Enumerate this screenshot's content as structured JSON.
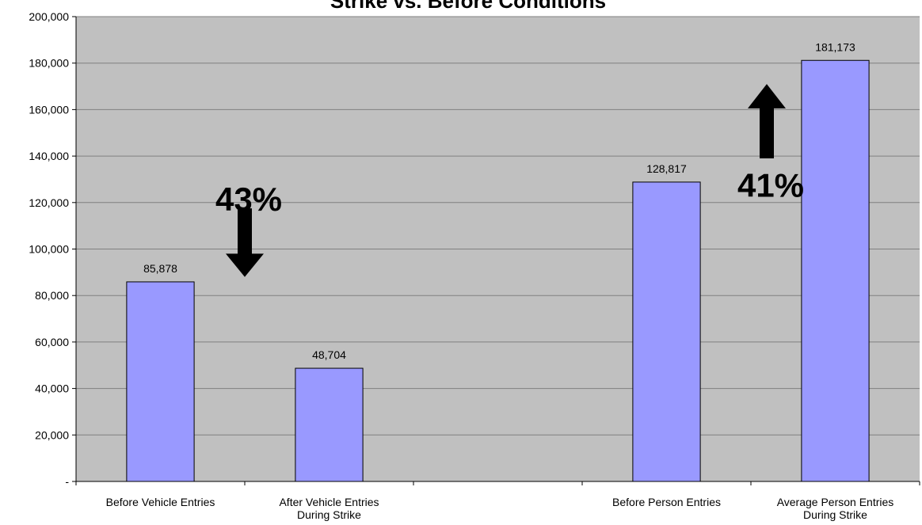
{
  "chart_data": {
    "type": "bar",
    "title": "Strike vs. Before Conditions",
    "xlabel": "",
    "ylabel": "",
    "ylim": [
      0,
      200000
    ],
    "y_ticks": [
      0,
      20000,
      40000,
      60000,
      80000,
      100000,
      120000,
      140000,
      160000,
      180000,
      200000
    ],
    "y_tick_labels": [
      "-",
      "20,000",
      "40,000",
      "60,000",
      "80,000",
      "100,000",
      "120,000",
      "140,000",
      "160,000",
      "180,000",
      "200,000"
    ],
    "categories": [
      [
        "Before Vehicle Entries"
      ],
      [
        "After Vehicle Entries",
        "During Strike"
      ],
      [],
      [
        "Before Person Entries"
      ],
      [
        "Average Person Entries",
        "During Strike"
      ]
    ],
    "values": [
      85878,
      48704,
      null,
      128817,
      181173
    ],
    "data_labels": [
      "85,878",
      "48,704",
      "",
      "128,817",
      "181,173"
    ],
    "grid": true,
    "legend": "none",
    "colors": {
      "plot_background": "#c0c0c0",
      "bar_fill": "#9999ff",
      "bar_stroke": "#000000",
      "gridline": "#808080"
    },
    "annotations": [
      {
        "text": "43%",
        "arrow": "down",
        "between": [
          0,
          1
        ]
      },
      {
        "text": "41%",
        "arrow": "up",
        "between": [
          3,
          4
        ]
      }
    ]
  }
}
